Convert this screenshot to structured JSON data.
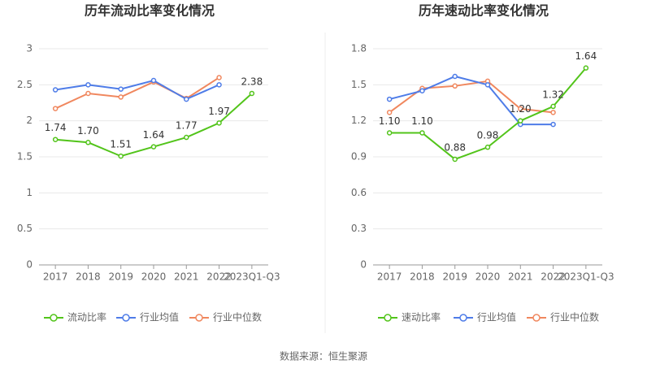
{
  "chart_data": [
    {
      "type": "line",
      "title": "历年流动比率变化情况",
      "categories": [
        "2017",
        "2018",
        "2019",
        "2020",
        "2021",
        "2022",
        "2023Q1-Q3"
      ],
      "series": [
        {
          "name": "流动比率",
          "color": "#52c41a",
          "values": [
            1.74,
            1.7,
            1.51,
            1.64,
            1.77,
            1.97,
            2.38
          ],
          "value_labels": [
            "1.74",
            "1.70",
            "1.51",
            "1.64",
            "1.77",
            "1.97",
            "2.38"
          ]
        },
        {
          "name": "行业均值",
          "color": "#4e7ce8",
          "values": [
            2.43,
            2.5,
            2.44,
            2.56,
            2.3,
            2.5,
            null
          ]
        },
        {
          "name": "行业中位数",
          "color": "#f0875e",
          "values": [
            2.17,
            2.38,
            2.33,
            2.54,
            2.31,
            2.6,
            null
          ]
        }
      ],
      "ylim": [
        0,
        3
      ],
      "yticks": [
        0,
        0.5,
        1,
        1.5,
        2,
        2.5,
        3
      ],
      "grid": true
    },
    {
      "type": "line",
      "title": "历年速动比率变化情况",
      "categories": [
        "2017",
        "2018",
        "2019",
        "2020",
        "2021",
        "2022",
        "2023Q1-Q3"
      ],
      "series": [
        {
          "name": "速动比率",
          "color": "#52c41a",
          "values": [
            1.1,
            1.1,
            0.88,
            0.98,
            1.2,
            1.32,
            1.64
          ],
          "value_labels": [
            "1.10",
            "1.10",
            "0.88",
            "0.98",
            "1.20",
            "1.32",
            "1.64"
          ]
        },
        {
          "name": "行业均值",
          "color": "#4e7ce8",
          "values": [
            1.38,
            1.45,
            1.57,
            1.5,
            1.17,
            1.17,
            null
          ]
        },
        {
          "name": "行业中位数",
          "color": "#f0875e",
          "values": [
            1.27,
            1.47,
            1.49,
            1.53,
            1.3,
            1.27,
            null
          ]
        }
      ],
      "ylim": [
        0,
        1.8
      ],
      "yticks": [
        0,
        0.3,
        0.6,
        0.9,
        1.2,
        1.5,
        1.8
      ],
      "grid": true
    }
  ],
  "source": "数据来源：恒生聚源"
}
